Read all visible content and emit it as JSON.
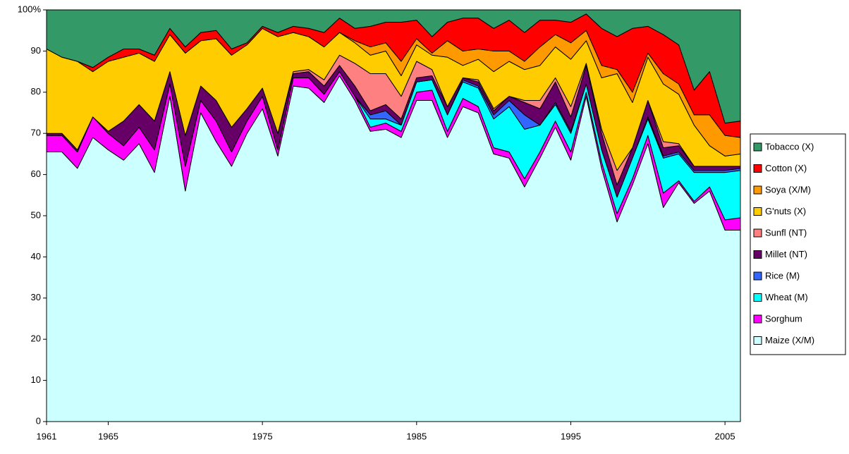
{
  "chart_data": {
    "type": "stacked_area",
    "x": [
      1961,
      1962,
      1963,
      1964,
      1965,
      1966,
      1967,
      1968,
      1969,
      1970,
      1971,
      1972,
      1973,
      1974,
      1975,
      1976,
      1977,
      1978,
      1979,
      1980,
      1981,
      1982,
      1983,
      1984,
      1985,
      1986,
      1987,
      1988,
      1989,
      1990,
      1991,
      1992,
      1993,
      1994,
      1995,
      1996,
      1997,
      1998,
      1999,
      2000,
      2001,
      2002,
      2003,
      2004,
      2005,
      2006
    ],
    "xlim": [
      1961,
      2006
    ],
    "xticks": [
      1961,
      1965,
      1975,
      1985,
      1995,
      2005
    ],
    "ylim": [
      0,
      100
    ],
    "yticks": [
      0,
      10,
      20,
      30,
      40,
      50,
      60,
      70,
      80,
      90,
      {
        "value": 100,
        "label": "100%"
      }
    ],
    "grid": false,
    "legend": "right",
    "series": [
      {
        "name": "Maize (X/M)",
        "color": "#ccffff",
        "values": [
          65.5,
          65.5,
          61.5,
          69,
          66,
          63.5,
          67.5,
          60.5,
          79,
          56,
          75,
          68,
          62,
          70,
          76,
          64.5,
          81.5,
          81,
          77.5,
          84,
          78,
          70.5,
          71,
          69,
          78,
          78,
          69,
          76.5,
          75,
          65,
          64,
          57,
          64,
          71.5,
          63.5,
          79,
          61.5,
          48.5,
          57.5,
          67.5,
          52,
          58,
          53,
          56,
          46.5,
          46.5
        ]
      },
      {
        "name": "Sorghum",
        "color": "#ff00ff",
        "values": [
          4,
          4,
          4,
          5,
          4,
          3.5,
          4,
          5.5,
          3,
          6,
          3,
          5,
          3.5,
          3,
          3,
          1.5,
          2,
          2.5,
          2,
          1,
          1,
          1,
          1.5,
          1.5,
          2,
          2.5,
          1.5,
          2,
          1.5,
          1.5,
          1.5,
          2,
          1.5,
          1.5,
          2,
          1,
          1.5,
          2,
          1.5,
          2,
          3.5,
          0.5,
          0.5,
          1,
          2.5,
          3
        ]
      },
      {
        "name": "Wheat (M)",
        "color": "#00ffff",
        "values": [
          0,
          0,
          0,
          0,
          0,
          0,
          0,
          0,
          0,
          0,
          0,
          0,
          0,
          0,
          0,
          0,
          0,
          0,
          0,
          0,
          0,
          2,
          1,
          1.5,
          2.5,
          2.5,
          4,
          4,
          4.5,
          7,
          11,
          12,
          6.5,
          4,
          4.5,
          2,
          3,
          4,
          5,
          4,
          8.5,
          6.5,
          7,
          3.5,
          11.5,
          11.5
        ]
      },
      {
        "name": "Rice (M)",
        "color": "#3366ff",
        "values": [
          0,
          0,
          0,
          0,
          0,
          0,
          0,
          0,
          0,
          0,
          0,
          0,
          0,
          0,
          0,
          0,
          0,
          0,
          0,
          0,
          0,
          1,
          2,
          0,
          0,
          0,
          0,
          0.5,
          0.5,
          1,
          1.5,
          3.5,
          0,
          0.5,
          0.5,
          0,
          0,
          0,
          0,
          0.5,
          0.5,
          0.5,
          0.5,
          0.5,
          0.5,
          0.5
        ]
      },
      {
        "name": "Millet (NT)",
        "color": "#660066",
        "values": [
          0.5,
          0.5,
          0.5,
          0,
          0.5,
          6,
          5.5,
          7,
          3,
          7.5,
          3.5,
          5,
          6,
          3,
          2,
          4,
          1,
          1.5,
          2,
          1.5,
          2.5,
          1,
          1.5,
          1.5,
          1,
          1,
          2,
          0.5,
          1,
          1,
          1,
          3,
          4,
          5,
          3.5,
          4.5,
          4,
          3,
          2.5,
          4,
          2,
          1.5,
          1,
          1,
          1,
          0.5
        ]
      },
      {
        "name": "Sunfl (NT)",
        "color": "#ff8080",
        "values": [
          0,
          0,
          0,
          0,
          0,
          0,
          0,
          0,
          0,
          0,
          0,
          0,
          0,
          0,
          0,
          0,
          0.5,
          0.5,
          1.5,
          2.5,
          5.5,
          9,
          7.5,
          5.5,
          4,
          1.5,
          0,
          0,
          0.5,
          0.5,
          0,
          0.5,
          2,
          1,
          2.5,
          0.5,
          1,
          3.5,
          0,
          0,
          1.5,
          0.5,
          0,
          0,
          0,
          0
        ]
      },
      {
        "name": "G'nuts (X)",
        "color": "#ffcc00",
        "values": [
          20.5,
          18.5,
          21.5,
          11,
          17,
          15.5,
          12.5,
          14.5,
          9,
          20,
          11,
          15,
          17.5,
          15.5,
          14.5,
          23.5,
          9.5,
          8,
          8,
          5.5,
          5,
          4.5,
          5.5,
          5,
          4,
          3.5,
          12,
          3,
          5,
          9,
          8.5,
          7.5,
          8.5,
          7.5,
          11.5,
          5.5,
          12.5,
          23.5,
          11,
          10.5,
          14,
          12,
          10,
          5,
          2.5,
          3
        ]
      },
      {
        "name": "Soya (X/M)",
        "color": "#ff9900",
        "values": [
          0,
          0,
          0,
          0,
          0,
          0,
          0,
          0,
          0,
          0,
          0,
          0,
          0,
          0,
          0,
          0,
          0,
          0,
          0,
          0,
          0.5,
          2,
          2,
          3.5,
          1.5,
          0.5,
          4,
          3.5,
          2.5,
          5,
          2.5,
          2,
          4.5,
          3,
          4,
          2.5,
          3,
          1,
          2.5,
          1,
          2.5,
          2.5,
          2.5,
          7.5,
          5,
          4
        ]
      },
      {
        "name": "Cotton (X)",
        "color": "#ff0000",
        "values": [
          0,
          0,
          0,
          1,
          1,
          2,
          1,
          1.5,
          1.5,
          1.5,
          2,
          2,
          1.5,
          0.5,
          0.5,
          1,
          1.5,
          2,
          3.5,
          3.5,
          3,
          5,
          5,
          9.5,
          4.5,
          4,
          4.5,
          8,
          7.5,
          5.5,
          7.5,
          7,
          6.5,
          3.5,
          5,
          4,
          9,
          8,
          15.5,
          6.5,
          9.5,
          9.5,
          6,
          10.5,
          3,
          4
        ]
      },
      {
        "name": "Tobacco (X)",
        "color": "#339966",
        "values": [
          9.5,
          11.5,
          12.5,
          14,
          11.5,
          9.5,
          9.5,
          11,
          4.5,
          9,
          5.5,
          5,
          9.5,
          8,
          4,
          5.5,
          4,
          4.5,
          5.5,
          2,
          4.5,
          4,
          3,
          3,
          2.5,
          6.5,
          3,
          2,
          2,
          4.5,
          2.5,
          5.5,
          2.5,
          2.5,
          3,
          1,
          4.5,
          6.5,
          4.5,
          4,
          6,
          8.5,
          19.5,
          15,
          27.5,
          27
        ]
      }
    ]
  }
}
